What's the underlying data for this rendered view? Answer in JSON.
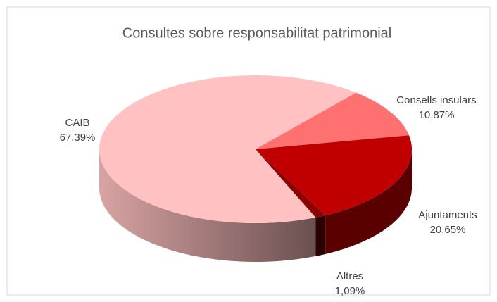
{
  "chart_data": {
    "type": "pie",
    "title": "Consultes sobre responsabilitat patrimonial",
    "categories": [
      "CAIB",
      "Consells insulars",
      "Ajuntaments",
      "Altres"
    ],
    "values": [
      67.39,
      10.87,
      20.65,
      1.09
    ],
    "value_labels": [
      "67,39%",
      "10,87%",
      "20,65%",
      "1,09%"
    ],
    "colors": [
      "#ffc1c1",
      "#ff7171",
      "#c00000",
      "#8b0000"
    ]
  }
}
